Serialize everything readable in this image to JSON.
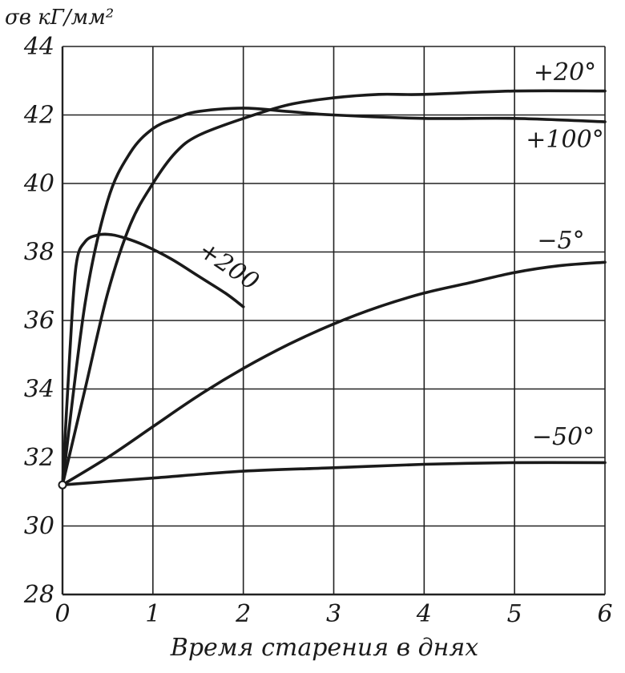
{
  "chart_data": {
    "type": "line",
    "ylabel": "σв кГ/мм²",
    "xlabel": "Время старения в днях",
    "xlim": [
      0,
      6
    ],
    "ylim": [
      28,
      44
    ],
    "xticks": [
      "0",
      "1",
      "2",
      "3",
      "4",
      "5",
      "6"
    ],
    "yticks": [
      "28",
      "30",
      "32",
      "34",
      "36",
      "38",
      "40",
      "42",
      "44"
    ],
    "grid": true,
    "series": [
      {
        "name": "+20°",
        "x": [
          0,
          0.25,
          0.5,
          0.75,
          1.0,
          1.25,
          1.5,
          2.0,
          2.5,
          3.0,
          3.5,
          4.0,
          5.0,
          6.0
        ],
        "y": [
          31.2,
          34.0,
          36.8,
          38.8,
          40.0,
          40.9,
          41.4,
          41.9,
          42.3,
          42.5,
          42.6,
          42.6,
          42.7,
          42.7
        ]
      },
      {
        "name": "+100°",
        "x": [
          0,
          0.25,
          0.5,
          0.75,
          1.0,
          1.25,
          1.5,
          2.0,
          2.5,
          3.0,
          4.0,
          5.0,
          6.0
        ],
        "y": [
          31.2,
          36.5,
          39.5,
          40.9,
          41.6,
          41.9,
          42.1,
          42.2,
          42.1,
          42.0,
          41.9,
          41.9,
          41.8
        ]
      },
      {
        "name": "+200",
        "x": [
          0,
          0.08,
          0.15,
          0.25,
          0.4,
          0.55,
          0.7,
          0.9,
          1.2,
          1.5,
          1.8,
          2.0
        ],
        "y": [
          31.2,
          35.0,
          37.6,
          38.3,
          38.5,
          38.5,
          38.4,
          38.2,
          37.8,
          37.3,
          36.8,
          36.4
        ]
      },
      {
        "name": "−5°",
        "x": [
          0,
          0.5,
          1.0,
          1.5,
          2.0,
          2.5,
          3.0,
          3.5,
          4.0,
          4.5,
          5.0,
          5.5,
          6.0
        ],
        "y": [
          31.2,
          32.0,
          32.9,
          33.8,
          34.6,
          35.3,
          35.9,
          36.4,
          36.8,
          37.1,
          37.4,
          37.6,
          37.7
        ]
      },
      {
        "name": "−50°",
        "x": [
          0,
          1.0,
          2.0,
          3.0,
          4.0,
          5.0,
          6.0
        ],
        "y": [
          31.2,
          31.4,
          31.6,
          31.7,
          31.8,
          31.85,
          31.85
        ]
      }
    ]
  }
}
